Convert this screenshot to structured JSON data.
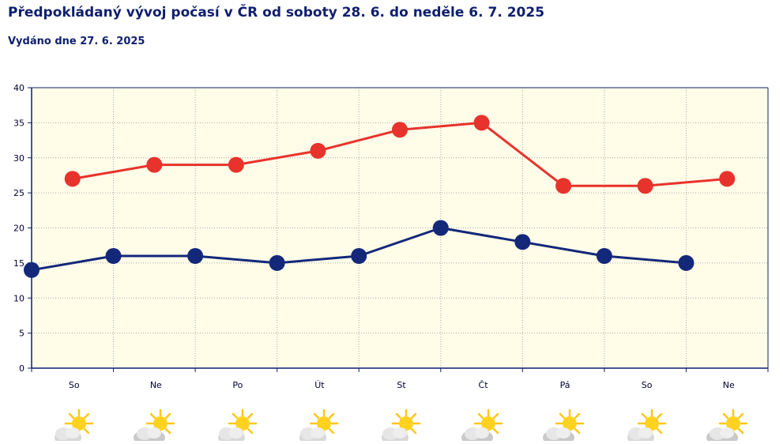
{
  "header": {
    "title": "Předpokládaný vývoj počasí v ČR od soboty 28. 6. do neděle 6. 7. 2025",
    "subtitle": "Vydáno dne 27. 6. 2025"
  },
  "chart_data": {
    "type": "line",
    "categories": [
      "So",
      "Ne",
      "Po",
      "Út",
      "St",
      "Čt",
      "Pá",
      "So",
      "Ne"
    ],
    "yticks": [
      0,
      5,
      10,
      15,
      20,
      25,
      30,
      35,
      40
    ],
    "ylim": [
      0,
      40
    ],
    "grid": true,
    "series": [
      {
        "id": "max",
        "color": "#e8322c",
        "values": [
          27,
          29,
          29,
          31,
          34,
          35,
          26,
          26,
          27
        ],
        "offset": 0.5
      },
      {
        "id": "min",
        "color": "#14287a",
        "values": [
          14,
          16,
          16,
          15,
          16,
          20,
          18,
          16,
          15
        ],
        "offset": 0
      }
    ]
  },
  "weather_icons": [
    "sun-behind-cloud-icon",
    "cloud-with-sun-icon",
    "sun-behind-cloud-icon",
    "sun-behind-cloud-icon",
    "sun-behind-cloud-icon",
    "cloud-with-sun-icon",
    "cloud-with-sun-icon",
    "sun-behind-cloud-icon",
    "cloud-with-sun-icon"
  ],
  "colors": {
    "plot_background": "#fffde8",
    "axis": "#0f1f6e",
    "title": "#0f1f6e"
  }
}
